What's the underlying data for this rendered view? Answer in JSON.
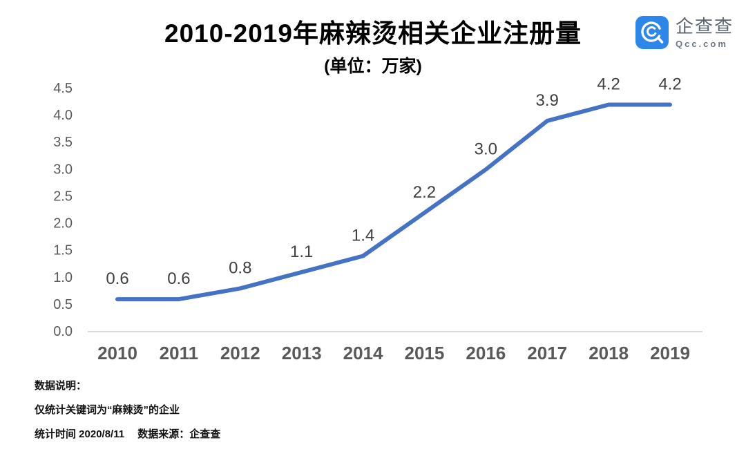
{
  "header": {
    "title": "2010-2019年麻辣烫相关企业注册量",
    "subtitle": "(单位：万家)"
  },
  "logo": {
    "name": "企查查",
    "domain": "Qcc.com",
    "brand_color": "#2E86E9"
  },
  "chart_data": {
    "type": "line",
    "title": "2010-2019年麻辣烫相关企业注册量",
    "unit_label": "(单位：万家)",
    "categories": [
      "2010",
      "2011",
      "2012",
      "2013",
      "2014",
      "2015",
      "2016",
      "2017",
      "2018",
      "2019"
    ],
    "values": [
      0.6,
      0.6,
      0.8,
      1.1,
      1.4,
      2.2,
      3.0,
      3.9,
      4.2,
      4.2
    ],
    "data_labels": [
      "0.6",
      "0.6",
      "0.8",
      "1.1",
      "1.4",
      "2.2",
      "3.0",
      "3.9",
      "4.2",
      "4.2"
    ],
    "ylim": [
      0.0,
      4.5
    ],
    "ytick_step": 0.5,
    "line_color": "#4472C4",
    "axis_color": "#D9D9D9",
    "tick_label_color": "#595959",
    "data_label_color": "#404040",
    "grid": false,
    "legend": "none"
  },
  "footer": {
    "heading": "数据说明：",
    "note": "仅统计关键词为“麻辣烫”的企业",
    "source": "统计时间 2020/8/11　 数据来源：企查查"
  }
}
